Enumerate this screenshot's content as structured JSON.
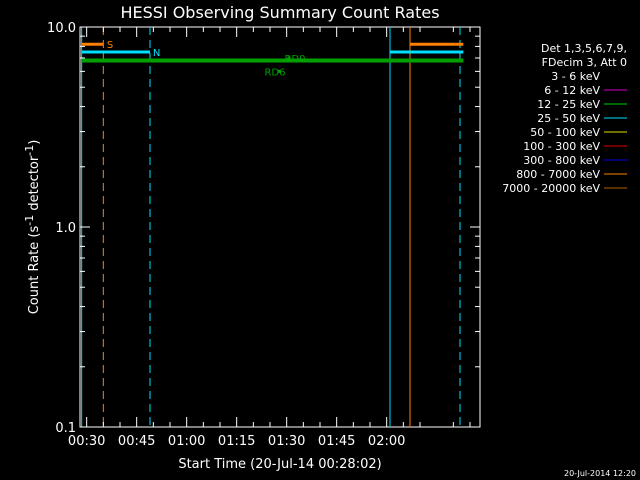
{
  "chart_data": {
    "type": "line",
    "title": "HESSI Observing Summary Count Rates",
    "xlabel": "Start Time (20-Jul-14 00:28:02)",
    "ylabel_main": "Count Rate (s",
    "ylabel_sup1": "-1",
    "ylabel_mid": " detector",
    "ylabel_sup2": "-1",
    "ylabel_end": ")",
    "yscale": "log",
    "ylim": [
      0.1,
      10.0
    ],
    "xlim_minutes": [
      0,
      120
    ],
    "y_ticks": [
      {
        "value": 0.1,
        "label": "0.1"
      },
      {
        "value": 1.0,
        "label": "1.0"
      },
      {
        "value": 10.0,
        "label": "10.0"
      }
    ],
    "x_ticks": [
      {
        "minute": 2,
        "label": "00:30"
      },
      {
        "minute": 17,
        "label": "00:45"
      },
      {
        "minute": 32,
        "label": "01:00"
      },
      {
        "minute": 47,
        "label": "01:15"
      },
      {
        "minute": 62,
        "label": "01:30"
      },
      {
        "minute": 77,
        "label": "01:45"
      },
      {
        "minute": 92,
        "label": "02:00"
      }
    ],
    "legend": {
      "header1": "Det 1,3,5,6,7,9,",
      "header2": "FDecim 3, Att 0",
      "entries": [
        {
          "label": "3 - 6 keV",
          "color": "#000000"
        },
        {
          "label": "6 - 12 keV",
          "color": "#d000d0"
        },
        {
          "label": "12 - 25 keV",
          "color": "#00d000"
        },
        {
          "label": "25 - 50 keV",
          "color": "#00e0ff"
        },
        {
          "label": "50 - 100 keV",
          "color": "#e0e000"
        },
        {
          "label": "100 - 300 keV",
          "color": "#e00000"
        },
        {
          "label": "300 - 800 keV",
          "color": "#0000e0"
        },
        {
          "label": "800 - 7000 keV",
          "color": "#ff8000"
        },
        {
          "label": "7000 - 20000 keV",
          "color": "#b06000"
        }
      ]
    },
    "series": [
      {
        "name": "S flag",
        "color": "#ff8000",
        "width": 3,
        "segments": [
          [
            0.5,
            7,
            8.2
          ],
          [
            99,
            115,
            8.2
          ]
        ]
      },
      {
        "name": "N flag",
        "color": "#00e0ff",
        "width": 3,
        "segments": [
          [
            0.5,
            21,
            7.5
          ],
          [
            93,
            115,
            7.5
          ]
        ]
      },
      {
        "name": "RD0",
        "color": "#00a000",
        "width": 4,
        "segments": [
          [
            0.5,
            115,
            6.8
          ]
        ]
      }
    ],
    "vlines": [
      {
        "minute": 7,
        "color": "#ff8000",
        "style": "dash"
      },
      {
        "minute": 21,
        "color": "#00e0ff",
        "style": "dash"
      },
      {
        "minute": 93,
        "color": "#00e0ff",
        "style": "solid"
      },
      {
        "minute": 99,
        "color": "#ff8000",
        "style": "solid"
      },
      {
        "minute": 114,
        "color": "#00e0ff",
        "style": "dash"
      },
      {
        "minute": 0.5,
        "color": "#00e0ff",
        "style": "solid"
      }
    ],
    "annotations": [
      {
        "text": "S",
        "minute": 9,
        "value": 8.2,
        "color": "#ff8000"
      },
      {
        "text": "N",
        "minute": 23,
        "value": 7.5,
        "color": "#00e0ff"
      },
      {
        "text": "RD0",
        "minute": 64.5,
        "value": 7.0,
        "color": "#00a000",
        "marker": true
      },
      {
        "text": "RD6",
        "minute": 58.5,
        "value": 6.0,
        "color": "#00a000",
        "marker": true
      }
    ],
    "footer": "20-Jul-2014 12:20"
  }
}
